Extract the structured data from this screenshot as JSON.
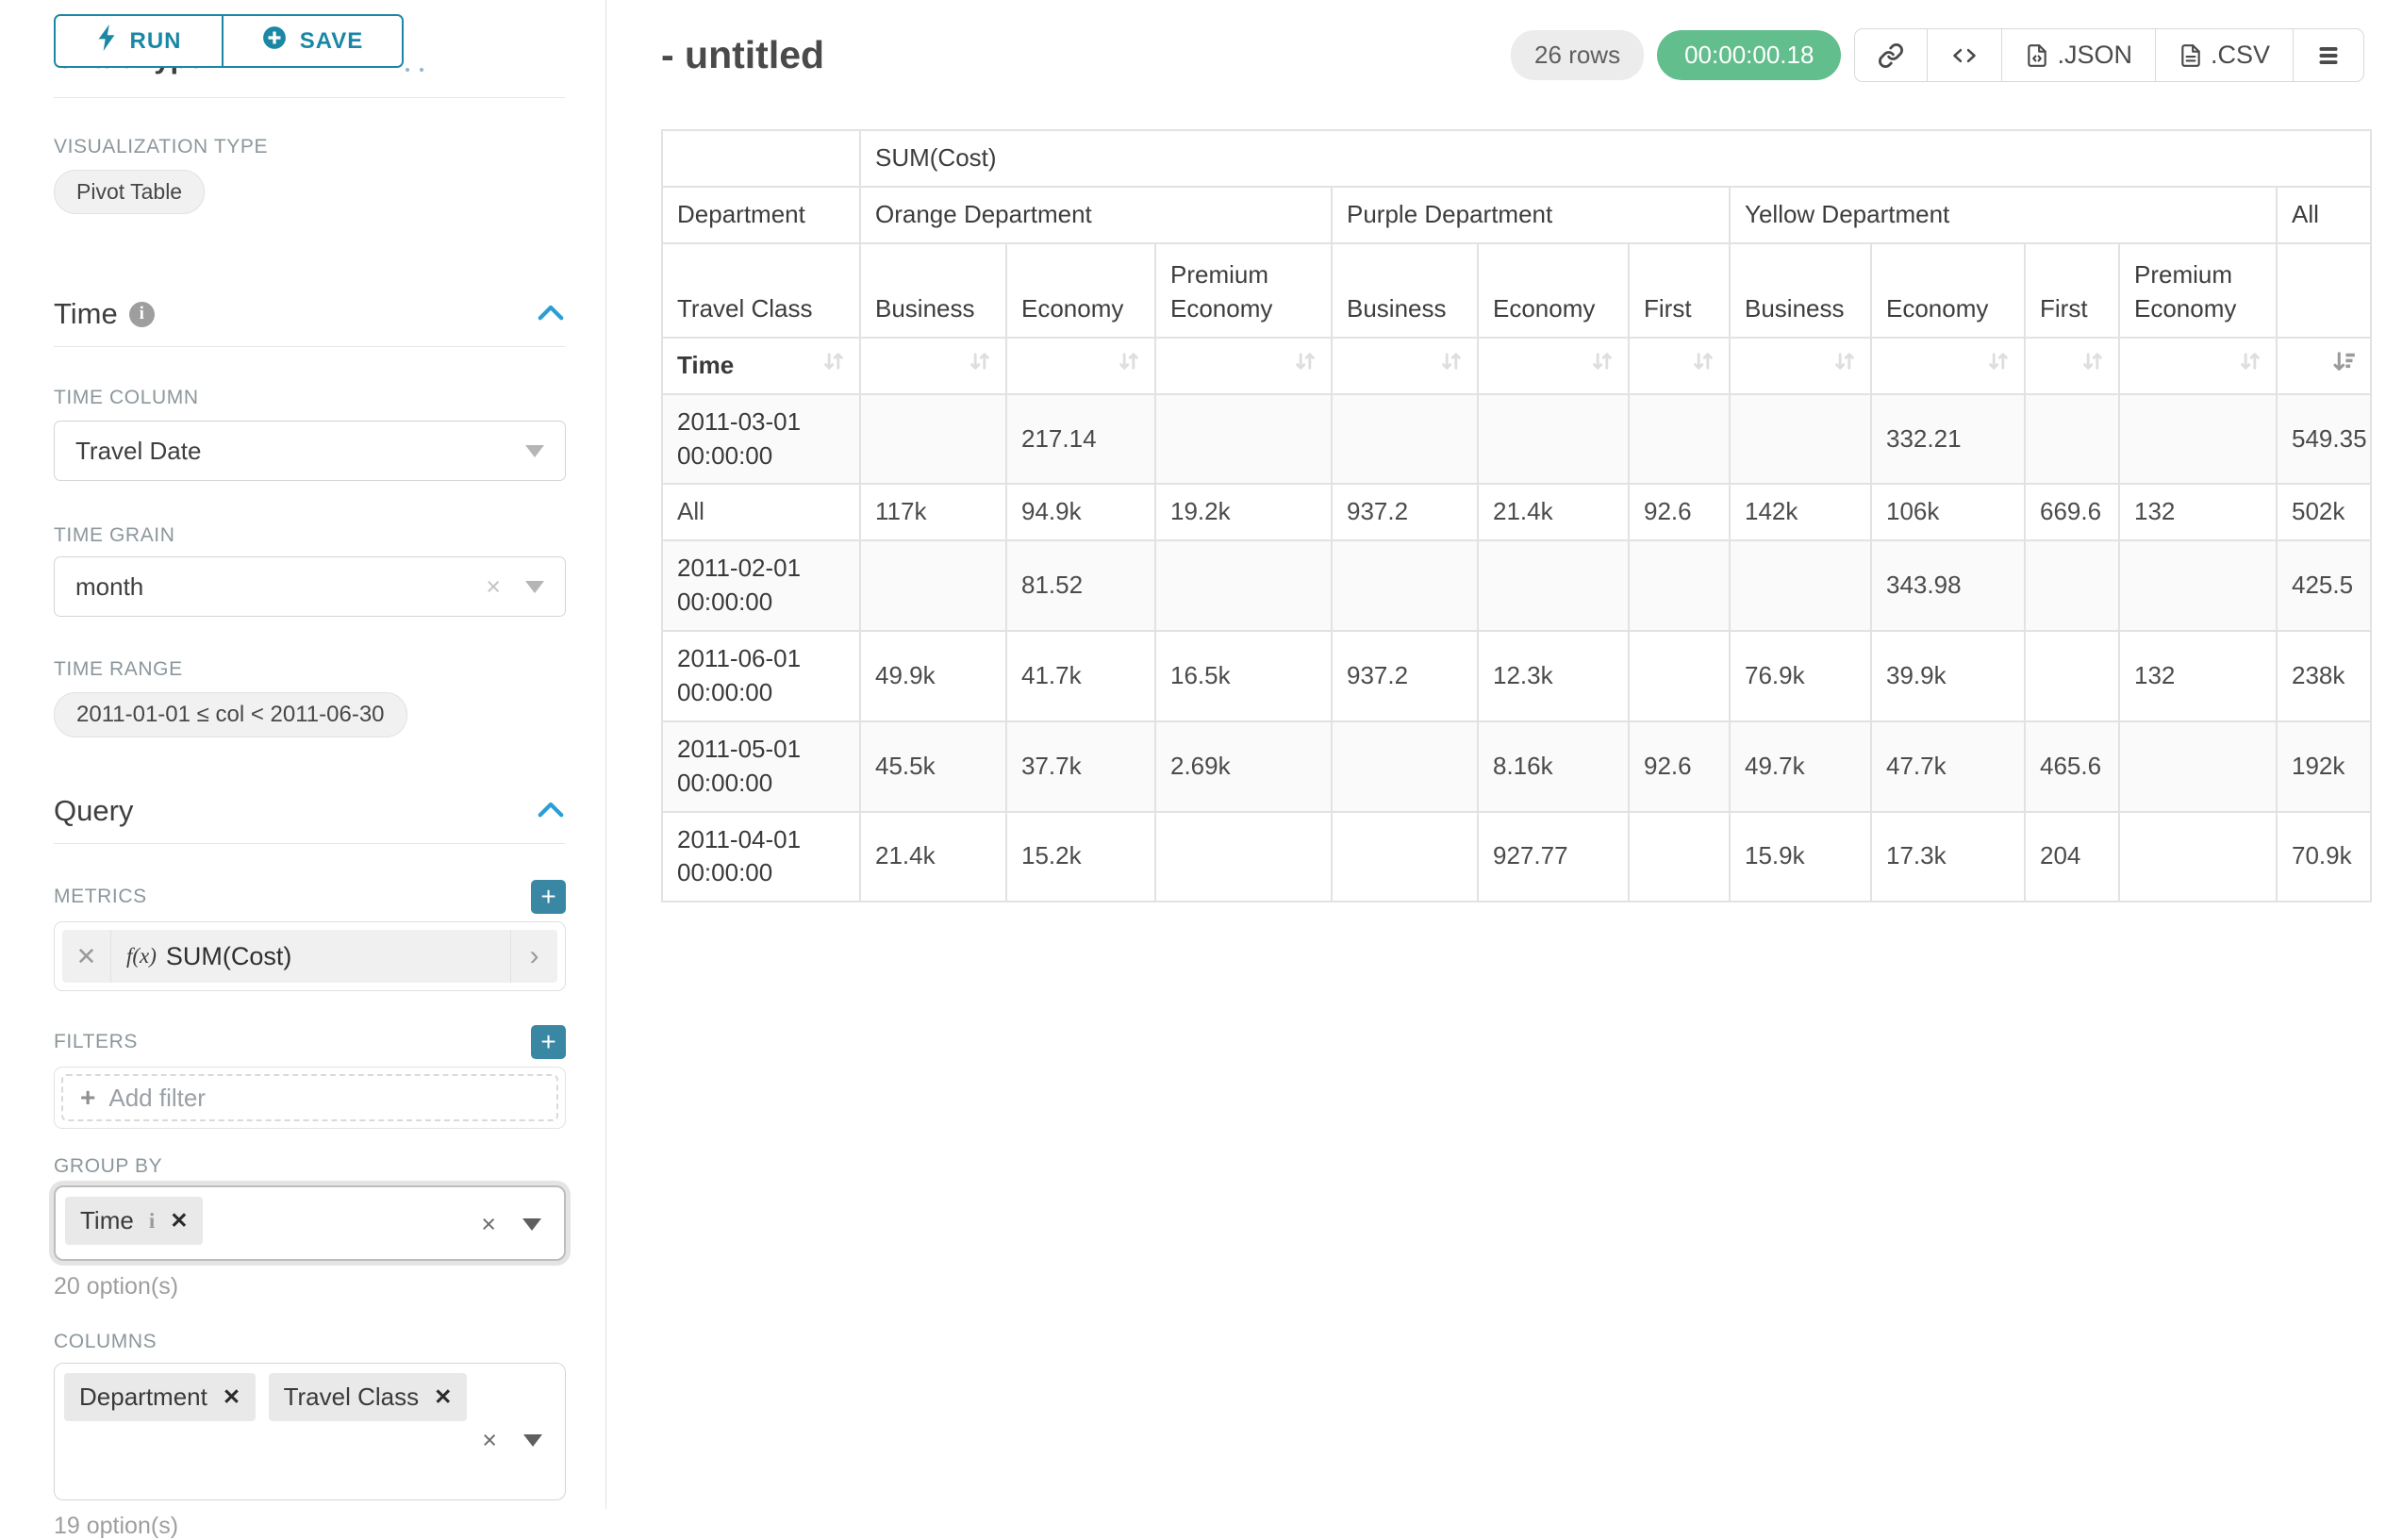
{
  "sidebar": {
    "run_button": "RUN",
    "save_button": "SAVE",
    "chart_type_heading": "Chart Type",
    "visualization_type_label": "VISUALIZATION TYPE",
    "visualization_type_value": "Pivot Table",
    "time_section": {
      "title": "Time",
      "time_column_label": "TIME COLUMN",
      "time_column_value": "Travel Date",
      "time_grain_label": "TIME GRAIN",
      "time_grain_value": "month",
      "time_range_label": "TIME RANGE",
      "time_range_value": "2011-01-01 ≤ col < 2011-06-30"
    },
    "query_section": {
      "title": "Query",
      "metrics_label": "METRICS",
      "metric_fx_label": "f(x)",
      "metric_value": "SUM(Cost)",
      "filters_label": "FILTERS",
      "add_filter_label": "Add filter",
      "group_by_label": "GROUP BY",
      "group_by_chips": [
        "Time"
      ],
      "group_by_options_hint": "20 option(s)",
      "columns_label": "COLUMNS",
      "columns_chips": [
        "Department",
        "Travel Class"
      ],
      "columns_options_hint": "19 option(s)"
    }
  },
  "header": {
    "title": "- untitled",
    "row_count_badge": "26 rows",
    "query_timer": "00:00:00.18",
    "export_json_label": ".JSON",
    "export_csv_label": ".CSV"
  },
  "chart_data": {
    "type": "table",
    "subtype": "pivot",
    "metric_header": "SUM(Cost)",
    "column_dimension_label": "Department",
    "sub_dimension_label": "Travel Class",
    "row_dimension_label": "Time",
    "column_groups": [
      {
        "label": "Orange Department",
        "children": [
          "Business",
          "Economy",
          "Premium Economy"
        ]
      },
      {
        "label": "Purple Department",
        "children": [
          "Business",
          "Economy",
          "First"
        ]
      },
      {
        "label": "Yellow Department",
        "children": [
          "Business",
          "Economy",
          "First",
          "Premium Economy"
        ]
      },
      {
        "label": "All",
        "children": [
          ""
        ]
      }
    ],
    "sort": {
      "column": "All",
      "direction": "desc"
    },
    "rows": [
      {
        "label": "2011-03-01 00:00:00",
        "bold": true,
        "values": [
          "",
          "217.14",
          "",
          "",
          "",
          "",
          "",
          "332.21",
          "",
          "",
          "549.35"
        ]
      },
      {
        "label": "All",
        "bold": false,
        "values": [
          "117k",
          "94.9k",
          "19.2k",
          "937.2",
          "21.4k",
          "92.6",
          "142k",
          "106k",
          "669.6",
          "132",
          "502k"
        ]
      },
      {
        "label": "2011-02-01 00:00:00",
        "bold": true,
        "values": [
          "",
          "81.52",
          "",
          "",
          "",
          "",
          "",
          "343.98",
          "",
          "",
          "425.5"
        ]
      },
      {
        "label": "2011-06-01 00:00:00",
        "bold": true,
        "values": [
          "49.9k",
          "41.7k",
          "16.5k",
          "937.2",
          "12.3k",
          "",
          "76.9k",
          "39.9k",
          "",
          "132",
          "238k"
        ]
      },
      {
        "label": "2011-05-01 00:00:00",
        "bold": true,
        "values": [
          "45.5k",
          "37.7k",
          "2.69k",
          "",
          "8.16k",
          "92.6",
          "49.7k",
          "47.7k",
          "465.6",
          "",
          "192k"
        ]
      },
      {
        "label": "2011-04-01 00:00:00",
        "bold": true,
        "values": [
          "21.4k",
          "15.2k",
          "",
          "",
          "927.77",
          "",
          "15.9k",
          "17.3k",
          "204",
          "",
          "70.9k"
        ]
      }
    ]
  }
}
